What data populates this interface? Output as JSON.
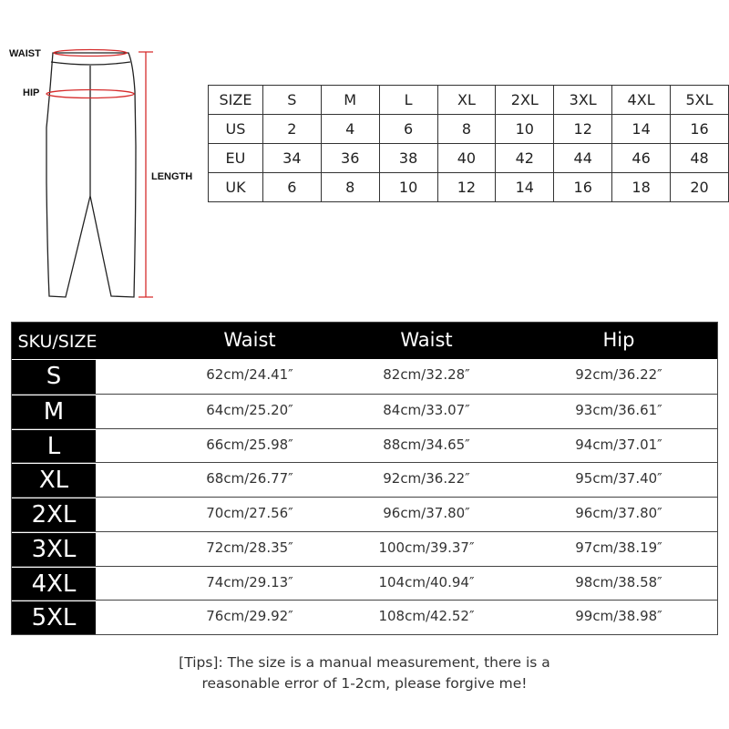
{
  "diagram": {
    "waist_label": "WAIST",
    "hip_label": "HIP",
    "length_label": "LENGTH",
    "measure_color": "#d62c2c"
  },
  "conversion_table": {
    "rows": [
      [
        "SIZE",
        "S",
        "M",
        "L",
        "XL",
        "2XL",
        "3XL",
        "4XL",
        "5XL"
      ],
      [
        "US",
        "2",
        "4",
        "6",
        "8",
        "10",
        "12",
        "14",
        "16"
      ],
      [
        "EU",
        "34",
        "36",
        "38",
        "40",
        "42",
        "44",
        "46",
        "48"
      ],
      [
        "UK",
        "6",
        "8",
        "10",
        "12",
        "14",
        "16",
        "18",
        "20"
      ]
    ]
  },
  "measurement_table": {
    "headers": [
      "SKU/SIZE",
      "Waist",
      "Waist",
      "Hip"
    ],
    "rows": [
      {
        "size": "S",
        "values": [
          "62cm/24.41″",
          "82cm/32.28″",
          "92cm/36.22″"
        ]
      },
      {
        "size": "M",
        "values": [
          "64cm/25.20″",
          "84cm/33.07″",
          "93cm/36.61″"
        ]
      },
      {
        "size": "L",
        "values": [
          "66cm/25.98″",
          "88cm/34.65″",
          "94cm/37.01″"
        ]
      },
      {
        "size": "XL",
        "values": [
          "68cm/26.77″",
          "92cm/36.22″",
          "95cm/37.40″"
        ]
      },
      {
        "size": "2XL",
        "values": [
          "70cm/27.56″",
          "96cm/37.80″",
          "96cm/37.80″"
        ]
      },
      {
        "size": "3XL",
        "values": [
          "72cm/28.35″",
          "100cm/39.37″",
          "97cm/38.19″"
        ]
      },
      {
        "size": "4XL",
        "values": [
          "74cm/29.13″",
          "104cm/40.94″",
          "98cm/38.58″"
        ]
      },
      {
        "size": "5XL",
        "values": [
          "76cm/29.92″",
          "108cm/42.52″",
          "99cm/38.98″"
        ]
      }
    ]
  },
  "tips": {
    "line1": "[Tips]: The size is a manual measurement, there is a",
    "line2": "reasonable error of 1-2cm, please forgive me!"
  }
}
